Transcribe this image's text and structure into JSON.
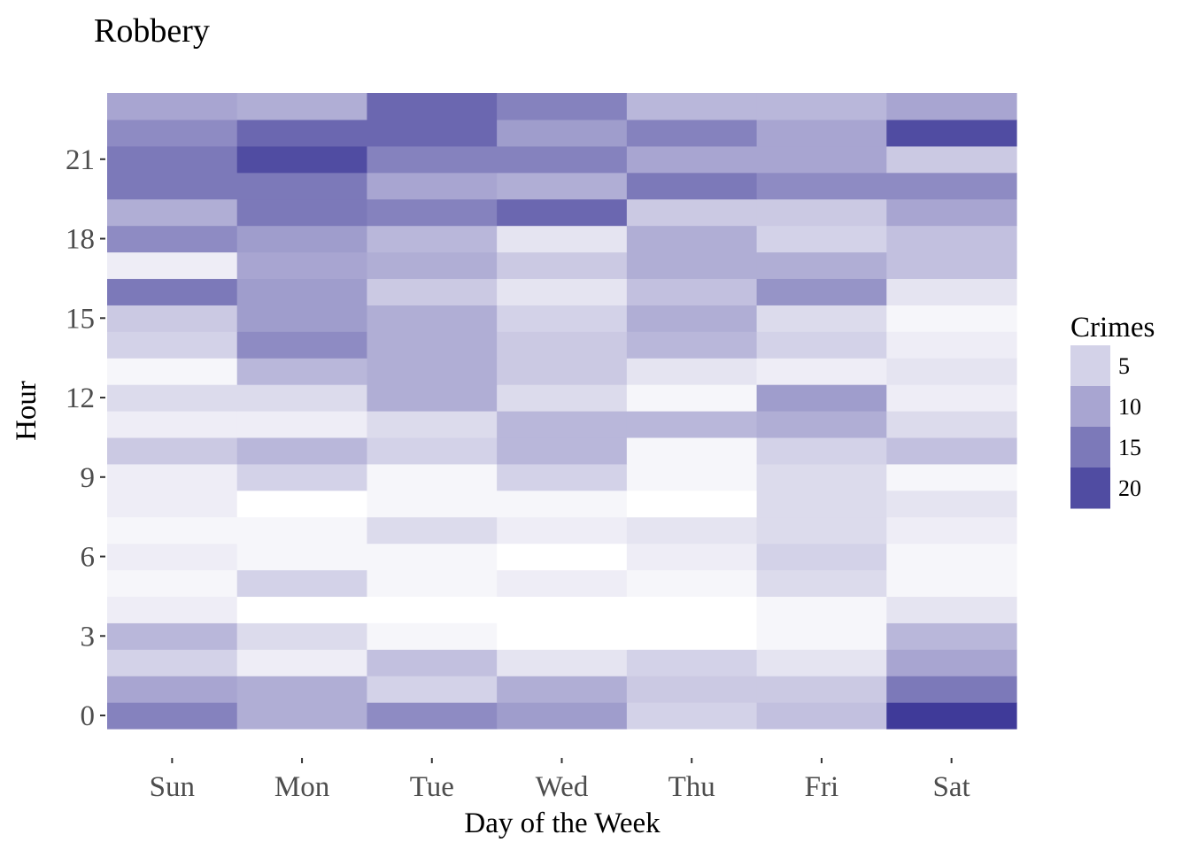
{
  "chart_data": {
    "type": "heatmap",
    "title": "Robbery",
    "xlabel": "Day of the Week",
    "ylabel": "Hour",
    "x_categories": [
      "Sun",
      "Mon",
      "Tue",
      "Wed",
      "Thu",
      "Fri",
      "Sat"
    ],
    "y_categories": [
      0,
      1,
      2,
      3,
      4,
      5,
      6,
      7,
      8,
      9,
      10,
      11,
      12,
      13,
      14,
      15,
      16,
      17,
      18,
      19,
      20,
      21,
      22,
      23
    ],
    "y_tick_values": [
      0,
      3,
      6,
      9,
      12,
      15,
      18,
      21
    ],
    "y_tick_labels": [
      "0",
      "3",
      "6",
      "9",
      "12",
      "15",
      "18",
      "21"
    ],
    "values": [
      [
        14,
        9,
        13,
        11,
        5,
        7,
        22
      ],
      [
        10,
        9,
        5,
        9,
        6,
        6,
        15
      ],
      [
        5,
        2,
        7,
        3,
        5,
        3,
        10
      ],
      [
        8,
        4,
        1,
        0,
        0,
        1,
        8
      ],
      [
        2,
        0,
        0,
        0,
        0,
        1,
        3
      ],
      [
        1,
        5,
        1,
        2,
        1,
        4,
        1
      ],
      [
        2,
        1,
        1,
        0,
        2,
        5,
        1
      ],
      [
        1,
        1,
        4,
        2,
        3,
        4,
        2
      ],
      [
        2,
        0,
        1,
        1,
        0,
        4,
        3
      ],
      [
        2,
        5,
        1,
        5,
        1,
        4,
        1
      ],
      [
        6,
        8,
        5,
        8,
        1,
        5,
        7
      ],
      [
        2,
        2,
        4,
        8,
        8,
        9,
        4
      ],
      [
        4,
        4,
        9,
        4,
        1,
        11,
        2
      ],
      [
        1,
        8,
        9,
        6,
        3,
        2,
        3
      ],
      [
        5,
        13,
        9,
        6,
        8,
        5,
        2
      ],
      [
        6,
        11,
        9,
        5,
        9,
        4,
        1
      ],
      [
        15,
        11,
        6,
        3,
        7,
        12,
        3
      ],
      [
        2,
        10,
        9,
        6,
        9,
        9,
        7
      ],
      [
        13,
        11,
        8,
        3,
        9,
        5,
        7
      ],
      [
        9,
        15,
        14,
        17,
        6,
        6,
        10
      ],
      [
        15,
        15,
        10,
        9,
        15,
        13,
        13
      ],
      [
        15,
        20,
        14,
        14,
        10,
        10,
        6
      ],
      [
        13,
        17,
        17,
        11,
        14,
        10,
        20
      ],
      [
        10,
        9,
        17,
        14,
        8,
        8,
        10
      ]
    ],
    "color_range": [
      0,
      22
    ],
    "color_low": "#ffffff",
    "color_high": "#3f3a99",
    "legend": {
      "title": "Crimes",
      "placement": "right",
      "breaks": [
        5,
        10,
        15,
        20
      ],
      "labels": [
        "5",
        "10",
        "15",
        "20"
      ]
    },
    "grid": false
  }
}
